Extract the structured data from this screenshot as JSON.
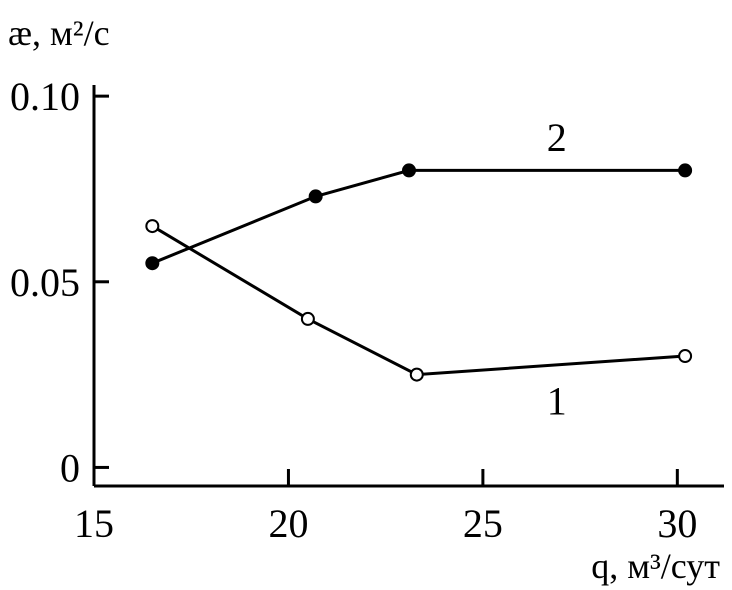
{
  "chart_data": {
    "type": "line",
    "xlabel": "q, м³/сут",
    "ylabel": "æ, м²/с",
    "xlim": [
      15,
      31.2
    ],
    "ylim": [
      -0.005,
      0.103
    ],
    "x_ticks": [
      15,
      20,
      25,
      30
    ],
    "x_tick_labels": [
      "15",
      "20",
      "25",
      "30"
    ],
    "y_ticks": [
      0,
      0.05,
      0.1
    ],
    "y_tick_labels": [
      "0",
      "0.05",
      "0.10"
    ],
    "grid": false,
    "legend": "none",
    "series": [
      {
        "name": "1",
        "marker": "open-circle",
        "x": [
          16.5,
          20.5,
          23.3,
          30.2
        ],
        "y": [
          0.065,
          0.04,
          0.025,
          0.03
        ]
      },
      {
        "name": "2",
        "marker": "filled-circle",
        "x": [
          16.5,
          20.7,
          23.1,
          30.2
        ],
        "y": [
          0.055,
          0.073,
          0.08,
          0.08
        ]
      }
    ],
    "series_label_positions": {
      "1": {
        "x": 26.9,
        "y": 0.018
      },
      "2": {
        "x": 26.9,
        "y": 0.089
      }
    }
  }
}
